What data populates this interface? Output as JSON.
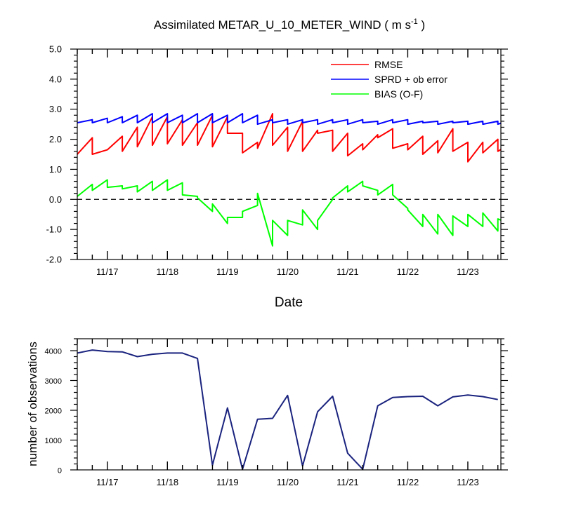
{
  "chart_data": [
    {
      "type": "line",
      "title_main": "Assimilated METAR_U_10_METER_WIND ( m s",
      "title_sup": "-1",
      "title_end": " )",
      "xlabel": "Date",
      "ylabel": "",
      "x_tick_labels": [
        "11/17",
        "11/18",
        "11/19",
        "11/20",
        "11/21",
        "11/22",
        "11/23"
      ],
      "x_tick_positions": [
        0.5,
        1.5,
        2.5,
        3.5,
        4.5,
        5.5,
        6.5
      ],
      "xlim": [
        0.0,
        7.05
      ],
      "ylim": [
        -2.0,
        5.0
      ],
      "y_tick_labels": [
        "5.0",
        "4.0",
        "3.0",
        "2.0",
        "1.0",
        "0.0",
        "-1.0",
        "-2.0"
      ],
      "y_tick_values": [
        5,
        4,
        3,
        2,
        1,
        0,
        -1,
        -2
      ],
      "zero_line": true,
      "legend_position": "top-right",
      "series": [
        {
          "name": "RMSE",
          "color": "#ff0000",
          "points": [
            [
              0.0,
              1.5
            ],
            [
              0.25,
              2.05
            ],
            [
              0.25,
              1.5
            ],
            [
              0.5,
              1.65
            ],
            [
              0.5,
              1.65
            ],
            [
              0.75,
              2.1
            ],
            [
              0.75,
              1.6
            ],
            [
              1.0,
              2.4
            ],
            [
              1.0,
              1.75
            ],
            [
              1.25,
              2.75
            ],
            [
              1.25,
              1.8
            ],
            [
              1.5,
              2.75
            ],
            [
              1.5,
              1.85
            ],
            [
              1.75,
              2.65
            ],
            [
              1.75,
              1.8
            ],
            [
              2.0,
              2.55
            ],
            [
              2.0,
              1.8
            ],
            [
              2.25,
              2.8
            ],
            [
              2.25,
              1.75
            ],
            [
              2.5,
              2.75
            ],
            [
              2.5,
              2.2
            ],
            [
              2.75,
              2.2
            ],
            [
              2.75,
              1.55
            ],
            [
              3.0,
              1.9
            ],
            [
              3.0,
              1.7
            ],
            [
              3.25,
              2.85
            ],
            [
              3.25,
              1.8
            ],
            [
              3.5,
              2.4
            ],
            [
              3.5,
              1.6
            ],
            [
              3.75,
              2.6
            ],
            [
              3.75,
              1.6
            ],
            [
              4.0,
              2.3
            ],
            [
              4.0,
              2.2
            ],
            [
              4.25,
              2.3
            ],
            [
              4.25,
              1.6
            ],
            [
              4.5,
              2.2
            ],
            [
              4.5,
              1.45
            ],
            [
              4.75,
              1.85
            ],
            [
              4.75,
              1.65
            ],
            [
              5.0,
              2.15
            ],
            [
              5.0,
              2.05
            ],
            [
              5.25,
              2.35
            ],
            [
              5.25,
              1.7
            ],
            [
              5.5,
              1.85
            ],
            [
              5.5,
              1.65
            ],
            [
              5.75,
              2.1
            ],
            [
              5.75,
              1.5
            ],
            [
              6.0,
              1.95
            ],
            [
              6.0,
              1.55
            ],
            [
              6.25,
              2.35
            ],
            [
              6.25,
              1.6
            ],
            [
              6.5,
              1.9
            ],
            [
              6.5,
              1.25
            ],
            [
              6.75,
              1.9
            ],
            [
              6.75,
              1.55
            ],
            [
              7.0,
              2.0
            ],
            [
              7.0,
              1.6
            ],
            [
              7.3,
              1.95
            ]
          ]
        },
        {
          "name": "SPRD + ob error",
          "color": "#0000ff",
          "points": [
            [
              0.0,
              2.55
            ],
            [
              0.25,
              2.65
            ],
            [
              0.25,
              2.55
            ],
            [
              0.5,
              2.7
            ],
            [
              0.5,
              2.55
            ],
            [
              0.75,
              2.75
            ],
            [
              0.75,
              2.55
            ],
            [
              1.0,
              2.8
            ],
            [
              1.0,
              2.55
            ],
            [
              1.25,
              2.85
            ],
            [
              1.25,
              2.55
            ],
            [
              1.5,
              2.85
            ],
            [
              1.5,
              2.55
            ],
            [
              1.75,
              2.8
            ],
            [
              1.75,
              2.55
            ],
            [
              2.0,
              2.85
            ],
            [
              2.0,
              2.55
            ],
            [
              2.25,
              2.85
            ],
            [
              2.25,
              2.55
            ],
            [
              2.5,
              2.8
            ],
            [
              2.5,
              2.55
            ],
            [
              2.75,
              2.85
            ],
            [
              2.75,
              2.55
            ],
            [
              3.0,
              2.8
            ],
            [
              3.0,
              2.5
            ],
            [
              3.25,
              2.65
            ],
            [
              3.25,
              2.55
            ],
            [
              3.5,
              2.65
            ],
            [
              3.5,
              2.5
            ],
            [
              3.75,
              2.65
            ],
            [
              3.75,
              2.55
            ],
            [
              4.0,
              2.65
            ],
            [
              4.0,
              2.5
            ],
            [
              4.25,
              2.65
            ],
            [
              4.25,
              2.55
            ],
            [
              4.5,
              2.65
            ],
            [
              4.5,
              2.5
            ],
            [
              4.75,
              2.65
            ],
            [
              4.75,
              2.55
            ],
            [
              5.0,
              2.6
            ],
            [
              5.0,
              2.5
            ],
            [
              5.25,
              2.65
            ],
            [
              5.25,
              2.55
            ],
            [
              5.5,
              2.65
            ],
            [
              5.5,
              2.5
            ],
            [
              5.75,
              2.6
            ],
            [
              5.75,
              2.55
            ],
            [
              6.0,
              2.6
            ],
            [
              6.0,
              2.5
            ],
            [
              6.25,
              2.6
            ],
            [
              6.25,
              2.55
            ],
            [
              6.5,
              2.6
            ],
            [
              6.5,
              2.5
            ],
            [
              6.75,
              2.6
            ],
            [
              6.75,
              2.5
            ],
            [
              7.0,
              2.6
            ],
            [
              7.0,
              2.5
            ],
            [
              7.3,
              2.7
            ]
          ]
        },
        {
          "name": "BIAS (O-F)",
          "color": "#00ff00",
          "points": [
            [
              0.0,
              0.1
            ],
            [
              0.25,
              0.5
            ],
            [
              0.25,
              0.3
            ],
            [
              0.5,
              0.65
            ],
            [
              0.5,
              0.4
            ],
            [
              0.75,
              0.45
            ],
            [
              0.75,
              0.35
            ],
            [
              1.0,
              0.45
            ],
            [
              1.0,
              0.25
            ],
            [
              1.25,
              0.6
            ],
            [
              1.25,
              0.3
            ],
            [
              1.5,
              0.65
            ],
            [
              1.5,
              0.3
            ],
            [
              1.75,
              0.55
            ],
            [
              1.75,
              0.15
            ],
            [
              2.0,
              0.1
            ],
            [
              2.0,
              0.05
            ],
            [
              2.25,
              -0.4
            ],
            [
              2.25,
              -0.15
            ],
            [
              2.5,
              -0.8
            ],
            [
              2.5,
              -0.6
            ],
            [
              2.75,
              -0.6
            ],
            [
              2.75,
              -0.4
            ],
            [
              3.0,
              -0.2
            ],
            [
              3.0,
              0.2
            ],
            [
              3.25,
              -1.55
            ],
            [
              3.25,
              -0.7
            ],
            [
              3.5,
              -1.2
            ],
            [
              3.5,
              -0.7
            ],
            [
              3.75,
              -0.85
            ],
            [
              3.75,
              -0.35
            ],
            [
              4.0,
              -1.0
            ],
            [
              4.0,
              -0.7
            ],
            [
              4.25,
              0.0
            ],
            [
              4.25,
              0.05
            ],
            [
              4.5,
              0.45
            ],
            [
              4.5,
              0.25
            ],
            [
              4.75,
              0.6
            ],
            [
              4.75,
              0.45
            ],
            [
              5.0,
              0.3
            ],
            [
              5.0,
              0.15
            ],
            [
              5.25,
              0.5
            ],
            [
              5.25,
              0.15
            ],
            [
              5.5,
              -0.3
            ],
            [
              5.5,
              -0.35
            ],
            [
              5.75,
              -0.9
            ],
            [
              5.75,
              -0.5
            ],
            [
              6.0,
              -1.15
            ],
            [
              6.0,
              -0.5
            ],
            [
              6.25,
              -1.2
            ],
            [
              6.25,
              -0.55
            ],
            [
              6.5,
              -0.9
            ],
            [
              6.5,
              -0.5
            ],
            [
              6.75,
              -0.9
            ],
            [
              6.75,
              -0.45
            ],
            [
              7.0,
              -1.05
            ],
            [
              7.0,
              -0.65
            ],
            [
              7.3,
              -0.9
            ]
          ]
        }
      ]
    },
    {
      "type": "line",
      "title": "",
      "xlabel": "",
      "ylabel": "number of observations",
      "x_tick_labels": [
        "11/17",
        "11/18",
        "11/19",
        "11/20",
        "11/21",
        "11/22",
        "11/23"
      ],
      "x_tick_positions": [
        0.5,
        1.5,
        2.5,
        3.5,
        4.5,
        5.5,
        6.5
      ],
      "xlim": [
        0.0,
        7.05
      ],
      "ylim": [
        0,
        4400
      ],
      "y_tick_labels": [
        "4000",
        "3000",
        "2000",
        "1000",
        "0"
      ],
      "y_tick_values": [
        4000,
        3000,
        2000,
        1000,
        0
      ],
      "series": [
        {
          "name": "",
          "color": "#1a237e",
          "points": [
            [
              0.0,
              3920
            ],
            [
              0.25,
              4020
            ],
            [
              0.5,
              3970
            ],
            [
              0.75,
              3960
            ],
            [
              1.0,
              3800
            ],
            [
              1.25,
              3880
            ],
            [
              1.5,
              3920
            ],
            [
              1.75,
              3920
            ],
            [
              2.0,
              3740
            ],
            [
              2.25,
              160
            ],
            [
              2.5,
              2080
            ],
            [
              2.75,
              20
            ],
            [
              3.0,
              1700
            ],
            [
              3.25,
              1730
            ],
            [
              3.5,
              2500
            ],
            [
              3.75,
              130
            ],
            [
              4.0,
              1950
            ],
            [
              4.25,
              2470
            ],
            [
              4.5,
              560
            ],
            [
              4.75,
              20
            ],
            [
              5.0,
              2150
            ],
            [
              5.25,
              2430
            ],
            [
              5.5,
              2460
            ],
            [
              5.75,
              2470
            ],
            [
              6.0,
              2150
            ],
            [
              6.25,
              2450
            ],
            [
              6.5,
              2510
            ],
            [
              6.75,
              2460
            ],
            [
              7.0,
              2360
            ]
          ]
        }
      ]
    }
  ]
}
